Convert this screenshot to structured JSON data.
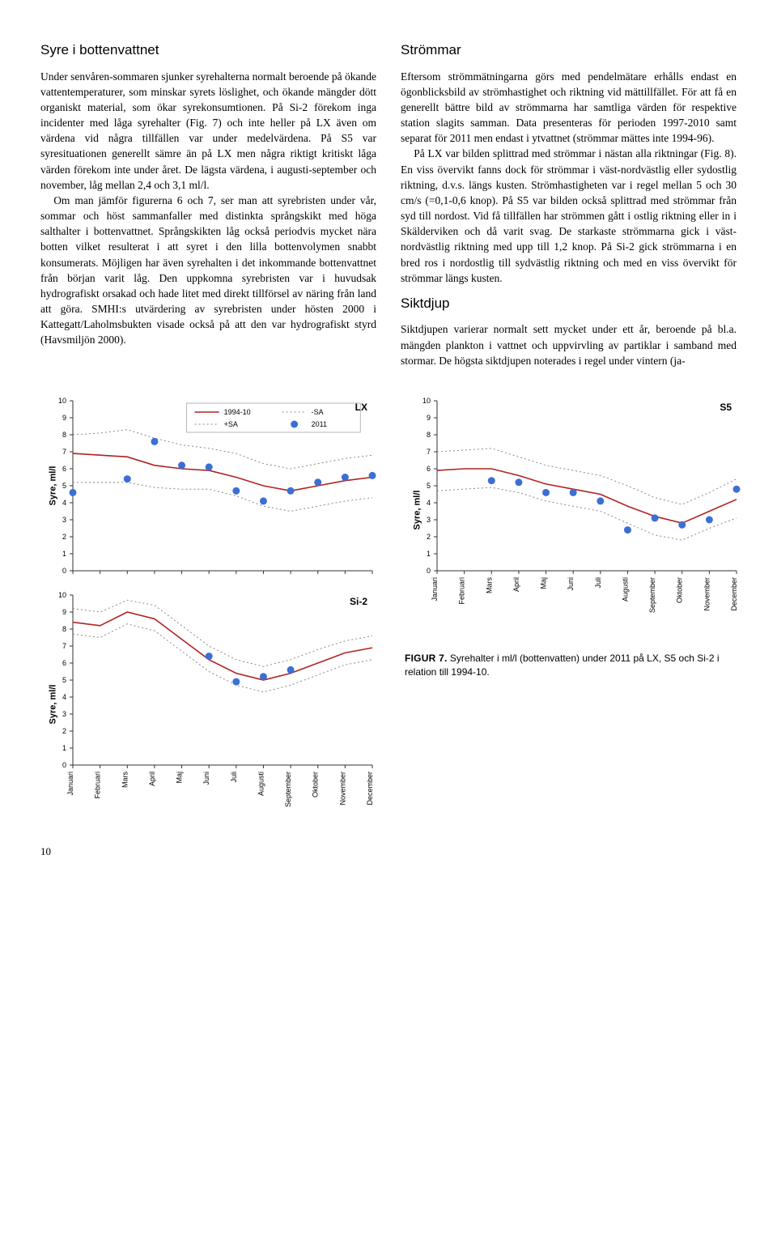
{
  "leftCol": {
    "h1": "Syre i bottenvattnet",
    "p1": "Under senvåren-sommaren sjunker syrehalterna normalt beroende på ökande vattentemperaturer, som minskar syrets löslighet, och ökande mängder dött organiskt material, som ökar syrekonsumtionen. På Si-2 förekom inga incidenter med låga syrehalter (Fig. 7) och inte heller på LX även om värdena vid några tillfällen var under medelvärdena. På S5 var syresituationen generellt sämre än på LX men några riktigt kritiskt låga värden förekom inte under året. De lägsta värdena, i augusti-september och november, låg mellan 2,4 och 3,1 ml/l.",
    "p2": "Om man jämför figurerna 6 och 7, ser man att syrebristen under vår, sommar och höst sammanfaller med distinkta språngskikt med höga salthalter i bottenvattnet. Språngskikten låg också periodvis mycket nära botten vilket resulterat i att syret i den lilla bottenvolymen snabbt konsumerats. Möjligen har även syrehalten i det inkommande bottenvattnet från början varit låg. Den uppkomna syrebristen var i huvudsak hydrografiskt orsakad och hade litet med direkt tillförsel av näring från land att göra. SMHI:s utvärdering av syrebristen under hösten 2000 i Kattegatt/Laholmsbukten visade också på att den var hydrografiskt styrd (Havsmiljön 2000)."
  },
  "rightCol": {
    "h1": "Strömmar",
    "p1": "Eftersom strömmätningarna görs med pendelmätare erhålls endast en ögonblicksbild av strömhastighet och riktning vid mättillfället. För att få en generellt bättre bild av strömmarna har samtliga värden för respektive station slagits samman. Data presenteras för perioden 1997-2010 samt separat för 2011 men endast i ytvattnet (strömmar mättes inte 1994-96).",
    "p2": "På LX var bilden splittrad med strömmar i nästan alla riktningar (Fig. 8). En viss övervikt fanns dock för strömmar i väst-nordvästlig eller sydostlig riktning, d.v.s. längs kusten. Strömhastigheten var i regel mellan 5 och 30 cm/s (=0,1-0,6 knop). På S5 var bilden också splittrad med strömmar från syd till nordost. Vid få tillfällen har strömmen gått i ostlig riktning eller in i Skälderviken och då varit svag. De starkaste strömmarna gick i väst-nordvästlig riktning med upp till 1,2 knop. På Si-2 gick strömmarna i en bred ros i nordostlig till sydvästlig riktning och med en viss övervikt för strömmar längs kusten.",
    "h2": "Siktdjup",
    "p3": "Siktdjupen varierar normalt sett mycket under ett år, beroende på bl.a. mängden plankton i vattnet och uppvirvling av partiklar i samband med stormar. De högsta siktdjupen noterades i regel under vintern (ja-"
  },
  "months": [
    "Januari",
    "Februari",
    "Mars",
    "April",
    "Maj",
    "Juni",
    "Juli",
    "Augusti",
    "September",
    "Oktober",
    "November",
    "December"
  ],
  "axis": {
    "ylabel": "Syre, ml/l",
    "ymin": 0,
    "ymax": 10,
    "ystep": 1
  },
  "legend": {
    "mean": "1994-10",
    "plusSA": "+SA",
    "minusSA": "-SA",
    "points": "2011"
  },
  "colors": {
    "meanLine": "#b22222",
    "saLine": "#888888",
    "point": "#3b6fd6",
    "axis": "#333333",
    "legendBorder": "#888888",
    "background": "#ffffff"
  },
  "chartLX": {
    "title": "LX",
    "mean": [
      6.9,
      6.8,
      6.7,
      6.2,
      6.0,
      5.9,
      5.5,
      5.0,
      4.7,
      5.0,
      5.3,
      5.5
    ],
    "plusSA": [
      8.0,
      8.1,
      8.3,
      7.8,
      7.4,
      7.2,
      6.9,
      6.3,
      6.0,
      6.3,
      6.6,
      6.8
    ],
    "minusSA": [
      5.2,
      5.2,
      5.2,
      4.9,
      4.8,
      4.8,
      4.4,
      3.8,
      3.5,
      3.8,
      4.1,
      4.3
    ],
    "points": [
      4.6,
      null,
      5.4,
      7.6,
      6.2,
      6.1,
      4.7,
      4.1,
      4.7,
      5.2,
      5.5,
      5.6
    ]
  },
  "chartS5": {
    "title": "S5",
    "mean": [
      5.9,
      6.0,
      6.0,
      5.6,
      5.1,
      4.8,
      4.5,
      3.8,
      3.2,
      2.8,
      3.5,
      4.2
    ],
    "plusSA": [
      7.0,
      7.1,
      7.2,
      6.7,
      6.2,
      5.9,
      5.6,
      5.0,
      4.3,
      3.9,
      4.6,
      5.4
    ],
    "minusSA": [
      4.7,
      4.8,
      4.9,
      4.6,
      4.1,
      3.8,
      3.5,
      2.8,
      2.1,
      1.8,
      2.5,
      3.1
    ],
    "points": [
      null,
      null,
      5.3,
      5.2,
      4.6,
      4.6,
      4.1,
      2.4,
      3.1,
      2.7,
      3.0,
      4.8
    ]
  },
  "chartSi2": {
    "title": "Si-2",
    "mean": [
      8.4,
      8.2,
      9.0,
      8.6,
      7.4,
      6.2,
      5.4,
      5.0,
      5.4,
      6.0,
      6.6,
      6.9
    ],
    "plusSA": [
      9.2,
      9.0,
      9.7,
      9.4,
      8.2,
      7.0,
      6.2,
      5.8,
      6.2,
      6.8,
      7.3,
      7.6
    ],
    "minusSA": [
      7.7,
      7.5,
      8.3,
      7.9,
      6.7,
      5.5,
      4.7,
      4.3,
      4.7,
      5.3,
      5.9,
      6.2
    ],
    "points": [
      null,
      null,
      null,
      null,
      null,
      6.4,
      4.9,
      5.2,
      5.6,
      null,
      null,
      null
    ]
  },
  "caption": {
    "lead": "FIGUR 7.",
    "text": " Syrehalter i ml/l (bottenvatten) under 2011 på LX, S5 och Si-2 i relation till 1994-10."
  },
  "pageNumber": "10"
}
